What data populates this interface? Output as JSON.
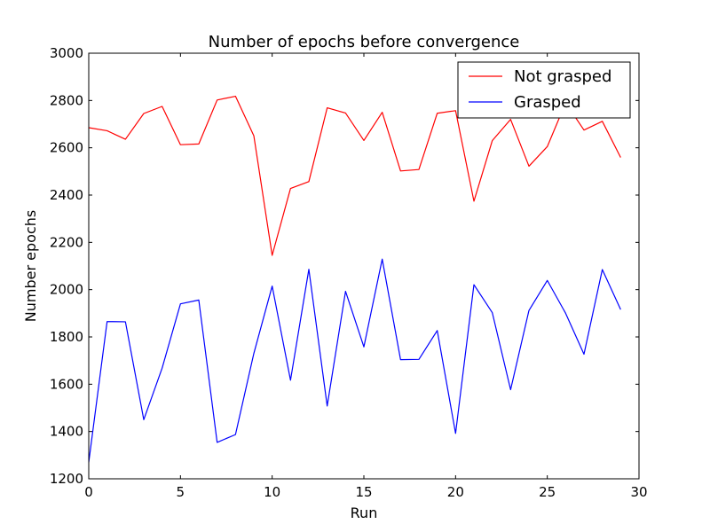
{
  "chart_data": {
    "type": "line",
    "title": "Number of epochs before convergence",
    "xlabel": "Run",
    "ylabel": "Number epochs",
    "xlim": [
      0,
      30
    ],
    "ylim": [
      1200,
      3000
    ],
    "x_ticks": [
      0,
      5,
      10,
      15,
      20,
      25,
      30
    ],
    "y_ticks": [
      1200,
      1400,
      1600,
      1800,
      2000,
      2200,
      2400,
      2600,
      2800,
      3000
    ],
    "grid": false,
    "legend_position": "top-right",
    "x": [
      0,
      1,
      2,
      3,
      4,
      5,
      6,
      7,
      8,
      9,
      10,
      11,
      12,
      13,
      14,
      15,
      16,
      17,
      18,
      19,
      20,
      21,
      22,
      23,
      24,
      25,
      26,
      27,
      28,
      29
    ],
    "series": [
      {
        "name": "Not grasped",
        "color": "#ff0000",
        "values": [
          2685,
          2672,
          2636,
          2745,
          2775,
          2613,
          2616,
          2802,
          2818,
          2651,
          2145,
          2428,
          2457,
          2769,
          2747,
          2631,
          2750,
          2502,
          2508,
          2746,
          2757,
          2374,
          2630,
          2720,
          2522,
          2605,
          2790,
          2675,
          2712,
          2559
        ]
      },
      {
        "name": "Grasped",
        "color": "#0000ff",
        "values": [
          1270,
          1865,
          1864,
          1450,
          1668,
          1940,
          1956,
          1354,
          1387,
          1730,
          2015,
          1617,
          2086,
          1508,
          1993,
          1758,
          2129,
          1704,
          1705,
          1827,
          1392,
          2021,
          1903,
          1577,
          1912,
          2039,
          1900,
          1727,
          2085,
          1916
        ]
      }
    ]
  }
}
